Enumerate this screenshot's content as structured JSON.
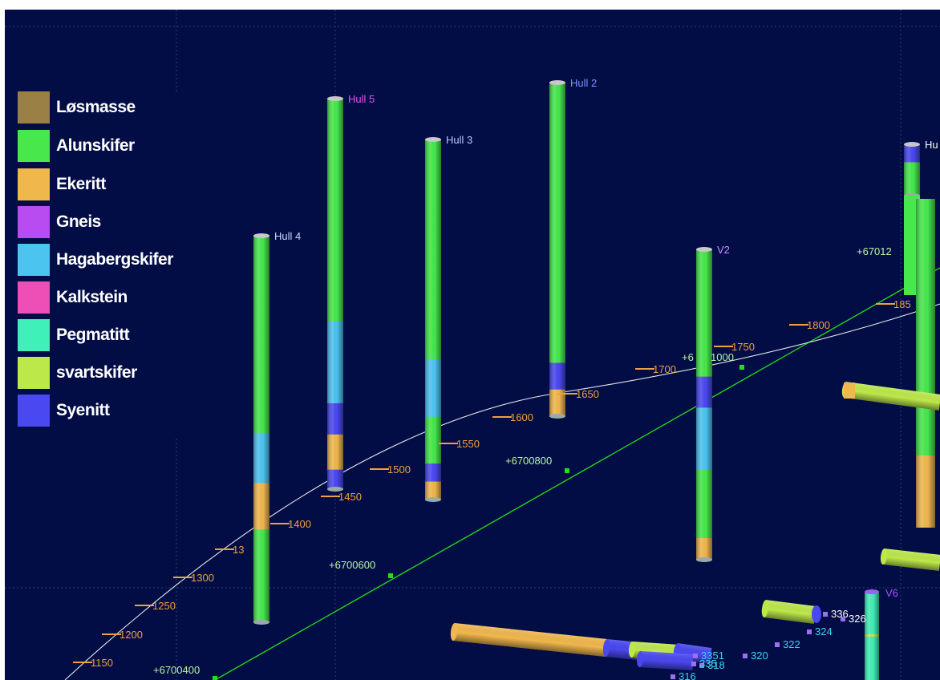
{
  "legend": [
    {
      "label": "Løsmasse",
      "color": "#9b8046"
    },
    {
      "label": "Alunskifer",
      "color": "#46e84c"
    },
    {
      "label": "Ekeritt",
      "color": "#f0b74d"
    },
    {
      "label": "Gneis",
      "color": "#b84cf0"
    },
    {
      "label": "Hagabergskifer",
      "color": "#4cc4f0"
    },
    {
      "label": "Kalkstein",
      "color": "#ee4fb6"
    },
    {
      "label": "Pegmatitt",
      "color": "#3ff0b8"
    },
    {
      "label": "svartskifer",
      "color": "#bde84a"
    },
    {
      "label": "Syenitt",
      "color": "#4a48f0"
    }
  ],
  "drillholes": [
    {
      "name": "Hull 4",
      "label_color": "#c9d4ff",
      "segments": [
        [
          "Alunskifer",
          0.51
        ],
        [
          "Hagabergskifer",
          0.13
        ],
        [
          "Ekeritt",
          0.12
        ],
        [
          "Alunskifer",
          0.24
        ]
      ]
    },
    {
      "name": "Hull 5",
      "label_color": "#e84ff0",
      "segments": [
        [
          "Alunskifer",
          0.57
        ],
        [
          "Hagabergskifer",
          0.21
        ],
        [
          "Syenitt",
          0.08
        ],
        [
          "Ekeritt",
          0.09
        ],
        [
          "Syenitt",
          0.05
        ]
      ]
    },
    {
      "name": "Hull 3",
      "label_color": "#b9c6ff",
      "segments": [
        [
          "Alunskifer",
          0.61
        ],
        [
          "Hagabergskifer",
          0.16
        ],
        [
          "Alunskifer",
          0.13
        ],
        [
          "Syenitt",
          0.05
        ],
        [
          "Ekeritt",
          0.05
        ]
      ]
    },
    {
      "name": "Hull 2",
      "label_color": "#8090ff",
      "segments": [
        [
          "Alunskifer",
          0.84
        ],
        [
          "Syenitt",
          0.08
        ],
        [
          "Ekeritt",
          0.08
        ]
      ]
    },
    {
      "name": "V2",
      "label_color": "#d48cff",
      "segments": [
        [
          "Alunskifer",
          0.41
        ],
        [
          "Syenitt",
          0.1
        ],
        [
          "Hagabergskifer",
          0.2
        ],
        [
          "Alunskifer",
          0.22
        ],
        [
          "Ekeritt",
          0.07
        ]
      ]
    },
    {
      "name": "Hu",
      "label_color": "#ffffff",
      "segments": [
        [
          "Syenitt",
          0.35
        ],
        [
          "Alunskifer",
          0.65
        ]
      ]
    },
    {
      "name": "V6",
      "label_color": "#a855f7",
      "segments": [
        [
          "Pegmatitt",
          0.5
        ],
        [
          "svartskifer",
          0.02
        ],
        [
          "Pegmatitt",
          0.48
        ]
      ]
    }
  ],
  "profile_chainages": [
    "1150",
    "1200",
    "1250",
    "1300",
    "13",
    "1400",
    "1450",
    "1500",
    "1550",
    "1600",
    "1650",
    "1700",
    "1750",
    "1800",
    "185"
  ],
  "grid_labels": [
    "+6700400",
    "+6700600",
    "+6700800",
    "+6",
    "1000",
    "+67012"
  ],
  "point_labels": [
    "336",
    "326",
    "324",
    "322",
    "320",
    "318",
    "3351",
    "335",
    "316"
  ],
  "label_colors": {
    "chainage": "#f0a040",
    "grid": "#b8f5a0",
    "point": "#3fd0f0",
    "green_line": "#22d418",
    "profile_line": "#e6e6e6"
  }
}
